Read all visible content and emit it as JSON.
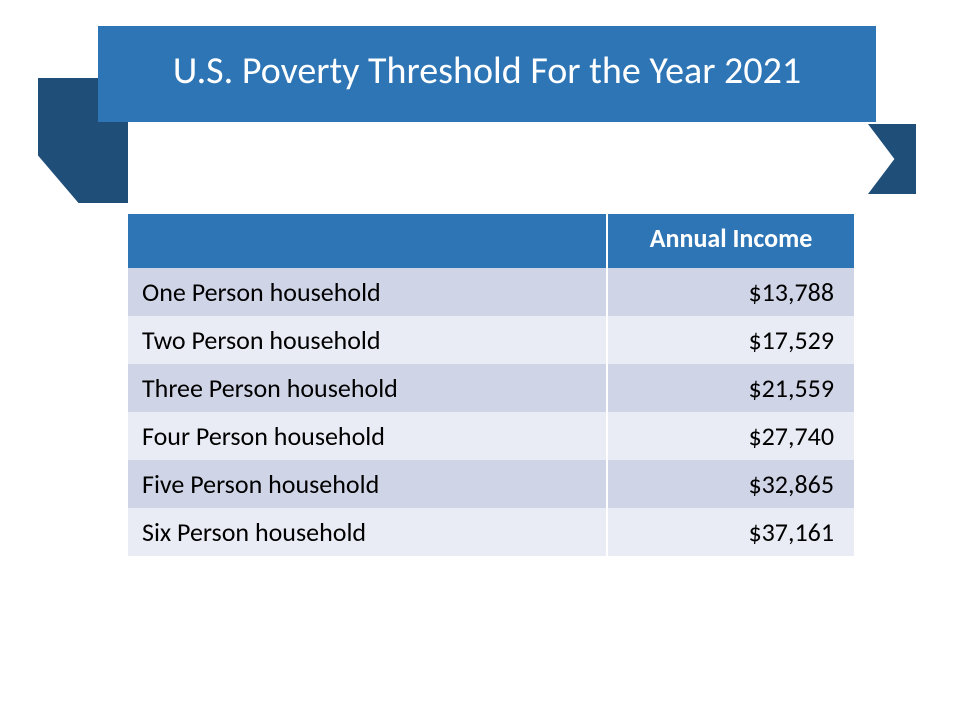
{
  "banner": {
    "title": "U.S. Poverty Threshold For the Year 2021",
    "bg_color": "#2e75b6",
    "text_color": "#ffffff",
    "ribbon_color": "#1f4e79",
    "title_fontsize": 38
  },
  "table": {
    "header_bg": "#2e75b6",
    "header_fg": "#ffffff",
    "row_odd_bg": "#cfd5e7",
    "row_even_bg": "#e9ecf5",
    "cell_fontsize": 26,
    "columns": [
      {
        "label": "",
        "width_pct": 66,
        "align": "left"
      },
      {
        "label": "Annual Income",
        "width_pct": 34,
        "align": "right"
      }
    ],
    "rows": [
      {
        "label": "One Person household",
        "value": "$13,788"
      },
      {
        "label": "Two Person household",
        "value": "$17,529"
      },
      {
        "label": "Three Person household",
        "value": "$21,559"
      },
      {
        "label": "Four Person household",
        "value": "$27,740"
      },
      {
        "label": "Five Person household",
        "value": "$32,865"
      },
      {
        "label": "Six Person household",
        "value": "$37,161"
      }
    ]
  }
}
